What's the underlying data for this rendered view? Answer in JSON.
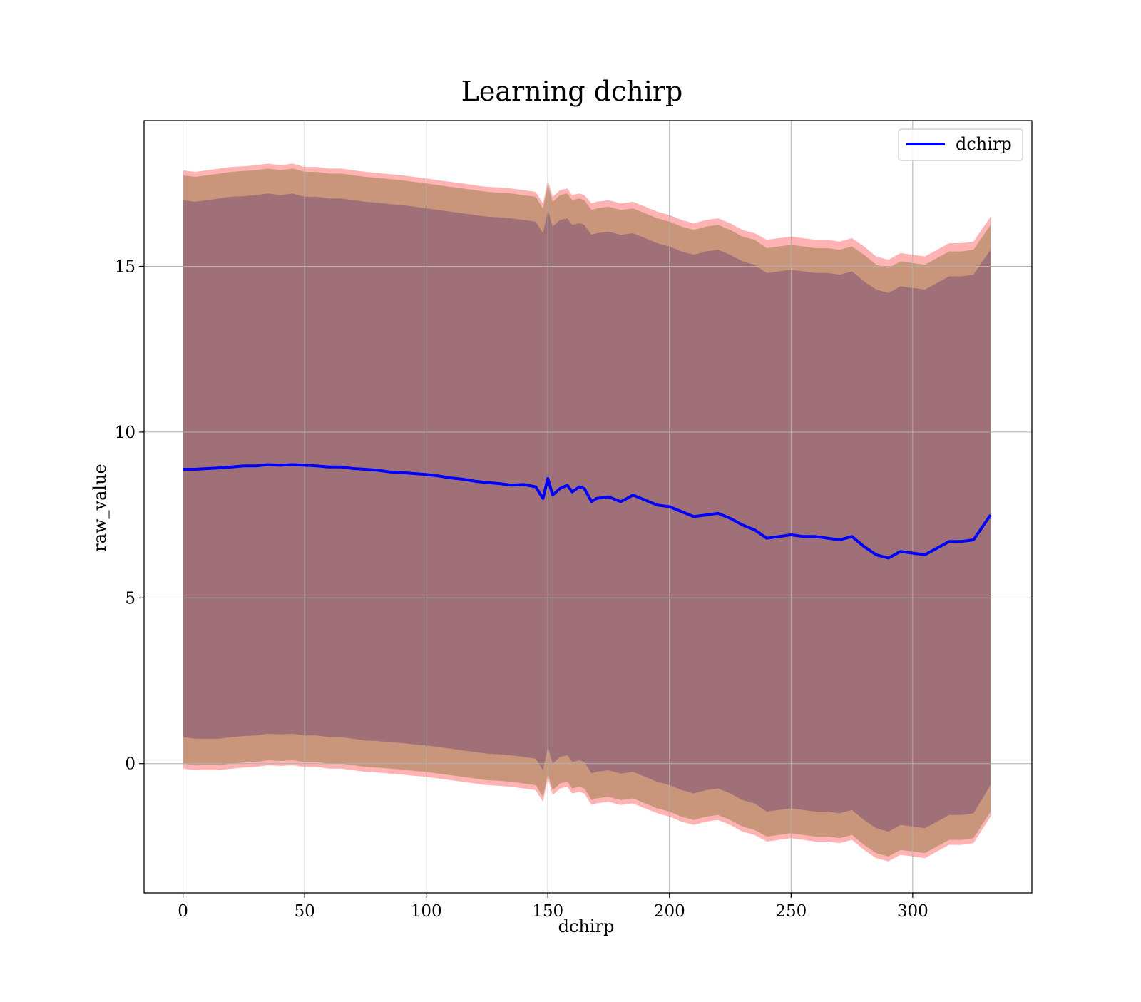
{
  "chart_data": {
    "type": "area",
    "title": "Learning dchirp",
    "xlabel": "dchirp",
    "ylabel": "raw_value",
    "xlim": [
      -16,
      349
    ],
    "ylim": [
      -3.9,
      19.4
    ],
    "xticks": [
      0,
      50,
      100,
      150,
      200,
      250,
      300
    ],
    "yticks": [
      0,
      5,
      10,
      15
    ],
    "grid": true,
    "legend_position": "top-right",
    "legend": [
      "dchirp"
    ],
    "colors": {
      "mean_line": "#0000ff",
      "band_outer": "#ffb3b3",
      "band_middle": "#c9967c",
      "band_inner": "#a07078",
      "grid": "#b0b0b0"
    },
    "series": [
      {
        "name": "dchirp",
        "x": [
          0,
          5,
          10,
          15,
          20,
          25,
          30,
          35,
          40,
          45,
          50,
          55,
          60,
          65,
          70,
          75,
          80,
          85,
          90,
          95,
          100,
          105,
          110,
          115,
          120,
          125,
          130,
          135,
          140,
          145,
          148,
          150,
          152,
          155,
          158,
          160,
          163,
          165,
          168,
          170,
          175,
          180,
          185,
          190,
          195,
          200,
          205,
          210,
          215,
          220,
          225,
          230,
          235,
          240,
          245,
          250,
          255,
          260,
          265,
          270,
          275,
          280,
          285,
          290,
          295,
          300,
          305,
          310,
          315,
          320,
          325,
          332
        ],
        "values": [
          8.88,
          8.88,
          8.9,
          8.92,
          8.95,
          8.98,
          8.98,
          9.02,
          9.0,
          9.02,
          9.0,
          8.98,
          8.95,
          8.95,
          8.9,
          8.88,
          8.85,
          8.8,
          8.78,
          8.75,
          8.72,
          8.68,
          8.62,
          8.58,
          8.52,
          8.48,
          8.45,
          8.4,
          8.42,
          8.35,
          8.0,
          8.6,
          8.1,
          8.3,
          8.4,
          8.2,
          8.35,
          8.3,
          7.9,
          8.0,
          8.05,
          7.9,
          8.1,
          7.95,
          7.8,
          7.75,
          7.6,
          7.45,
          7.5,
          7.55,
          7.4,
          7.2,
          7.05,
          6.8,
          6.85,
          6.9,
          6.85,
          6.85,
          6.8,
          6.75,
          6.85,
          6.55,
          6.3,
          6.2,
          6.4,
          6.35,
          6.3,
          6.5,
          6.7,
          6.7,
          6.75,
          7.5
        ],
        "band_outer_upper": [
          17.9,
          17.85,
          17.9,
          17.95,
          18.0,
          18.02,
          18.05,
          18.1,
          18.05,
          18.1,
          18.0,
          18.0,
          17.95,
          17.95,
          17.9,
          17.85,
          17.82,
          17.78,
          17.75,
          17.7,
          17.65,
          17.6,
          17.55,
          17.5,
          17.45,
          17.4,
          17.38,
          17.35,
          17.3,
          17.25,
          16.9,
          17.6,
          17.1,
          17.3,
          17.35,
          17.15,
          17.2,
          17.15,
          16.9,
          16.95,
          17.0,
          16.9,
          16.95,
          16.8,
          16.65,
          16.55,
          16.4,
          16.3,
          16.4,
          16.45,
          16.3,
          16.1,
          16.0,
          15.8,
          15.85,
          15.9,
          15.85,
          15.8,
          15.8,
          15.75,
          15.85,
          15.6,
          15.3,
          15.2,
          15.4,
          15.35,
          15.3,
          15.5,
          15.7,
          15.7,
          15.75,
          16.5
        ],
        "band_middle_upper": [
          17.75,
          17.7,
          17.75,
          17.8,
          17.85,
          17.88,
          17.9,
          17.95,
          17.9,
          17.95,
          17.85,
          17.85,
          17.8,
          17.8,
          17.75,
          17.7,
          17.67,
          17.63,
          17.6,
          17.55,
          17.5,
          17.45,
          17.4,
          17.35,
          17.3,
          17.25,
          17.22,
          17.2,
          17.15,
          17.1,
          16.75,
          17.45,
          16.95,
          17.15,
          17.2,
          17.0,
          17.05,
          17.0,
          16.7,
          16.75,
          16.8,
          16.7,
          16.75,
          16.6,
          16.45,
          16.35,
          16.2,
          16.1,
          16.2,
          16.25,
          16.1,
          15.9,
          15.8,
          15.55,
          15.6,
          15.65,
          15.6,
          15.55,
          15.55,
          15.5,
          15.6,
          15.35,
          15.05,
          14.95,
          15.15,
          15.1,
          15.05,
          15.25,
          15.45,
          15.45,
          15.5,
          16.25
        ],
        "band_inner_upper": [
          17.0,
          16.95,
          17.0,
          17.05,
          17.1,
          17.12,
          17.15,
          17.2,
          17.15,
          17.2,
          17.1,
          17.1,
          17.05,
          17.05,
          17.0,
          16.95,
          16.92,
          16.88,
          16.85,
          16.8,
          16.75,
          16.7,
          16.65,
          16.6,
          16.55,
          16.5,
          16.48,
          16.45,
          16.4,
          16.35,
          16.0,
          16.7,
          16.2,
          16.4,
          16.45,
          16.25,
          16.3,
          16.25,
          15.95,
          16.0,
          16.05,
          15.95,
          16.0,
          15.85,
          15.7,
          15.6,
          15.45,
          15.35,
          15.45,
          15.5,
          15.35,
          15.15,
          15.05,
          14.8,
          14.85,
          14.9,
          14.85,
          14.8,
          14.8,
          14.75,
          14.85,
          14.55,
          14.3,
          14.2,
          14.4,
          14.35,
          14.3,
          14.5,
          14.7,
          14.7,
          14.75,
          15.5
        ],
        "band_inner_lower": [
          0.8,
          0.75,
          0.75,
          0.75,
          0.8,
          0.83,
          0.85,
          0.9,
          0.88,
          0.9,
          0.85,
          0.85,
          0.8,
          0.8,
          0.75,
          0.7,
          0.68,
          0.65,
          0.62,
          0.58,
          0.55,
          0.5,
          0.45,
          0.4,
          0.35,
          0.3,
          0.28,
          0.25,
          0.2,
          0.15,
          -0.2,
          0.5,
          0.0,
          0.2,
          0.25,
          0.05,
          0.1,
          0.05,
          -0.3,
          -0.25,
          -0.2,
          -0.3,
          -0.25,
          -0.4,
          -0.55,
          -0.65,
          -0.8,
          -0.9,
          -0.8,
          -0.75,
          -0.9,
          -1.1,
          -1.2,
          -1.45,
          -1.4,
          -1.35,
          -1.4,
          -1.45,
          -1.45,
          -1.5,
          -1.4,
          -1.7,
          -1.95,
          -2.05,
          -1.85,
          -1.9,
          -1.95,
          -1.75,
          -1.55,
          -1.55,
          -1.5,
          -0.65
        ],
        "band_middle_lower": [
          0.0,
          -0.05,
          -0.05,
          -0.05,
          0.0,
          0.03,
          0.05,
          0.1,
          0.08,
          0.1,
          0.05,
          0.05,
          0.0,
          0.0,
          -0.05,
          -0.1,
          -0.12,
          -0.15,
          -0.18,
          -0.22,
          -0.25,
          -0.3,
          -0.35,
          -0.4,
          -0.45,
          -0.5,
          -0.52,
          -0.55,
          -0.6,
          -0.65,
          -1.0,
          -0.3,
          -0.8,
          -0.6,
          -0.55,
          -0.75,
          -0.7,
          -0.75,
          -1.1,
          -1.05,
          -1.0,
          -1.1,
          -1.05,
          -1.2,
          -1.35,
          -1.45,
          -1.6,
          -1.7,
          -1.6,
          -1.55,
          -1.7,
          -1.9,
          -2.0,
          -2.2,
          -2.15,
          -2.1,
          -2.15,
          -2.2,
          -2.2,
          -2.25,
          -2.15,
          -2.45,
          -2.7,
          -2.8,
          -2.6,
          -2.65,
          -2.7,
          -2.5,
          -2.3,
          -2.3,
          -2.25,
          -1.45
        ],
        "band_outer_lower": [
          -0.15,
          -0.2,
          -0.2,
          -0.2,
          -0.15,
          -0.12,
          -0.1,
          -0.05,
          -0.07,
          -0.05,
          -0.1,
          -0.1,
          -0.15,
          -0.15,
          -0.2,
          -0.25,
          -0.27,
          -0.3,
          -0.33,
          -0.37,
          -0.4,
          -0.45,
          -0.5,
          -0.55,
          -0.6,
          -0.65,
          -0.67,
          -0.7,
          -0.75,
          -0.8,
          -1.15,
          -0.45,
          -0.95,
          -0.75,
          -0.7,
          -0.9,
          -0.85,
          -0.9,
          -1.25,
          -1.2,
          -1.15,
          -1.25,
          -1.2,
          -1.35,
          -1.5,
          -1.6,
          -1.75,
          -1.85,
          -1.75,
          -1.7,
          -1.85,
          -2.05,
          -2.15,
          -2.35,
          -2.3,
          -2.25,
          -2.3,
          -2.35,
          -2.35,
          -2.4,
          -2.3,
          -2.6,
          -2.85,
          -2.95,
          -2.75,
          -2.8,
          -2.85,
          -2.65,
          -2.45,
          -2.45,
          -2.4,
          -1.6
        ]
      }
    ]
  }
}
